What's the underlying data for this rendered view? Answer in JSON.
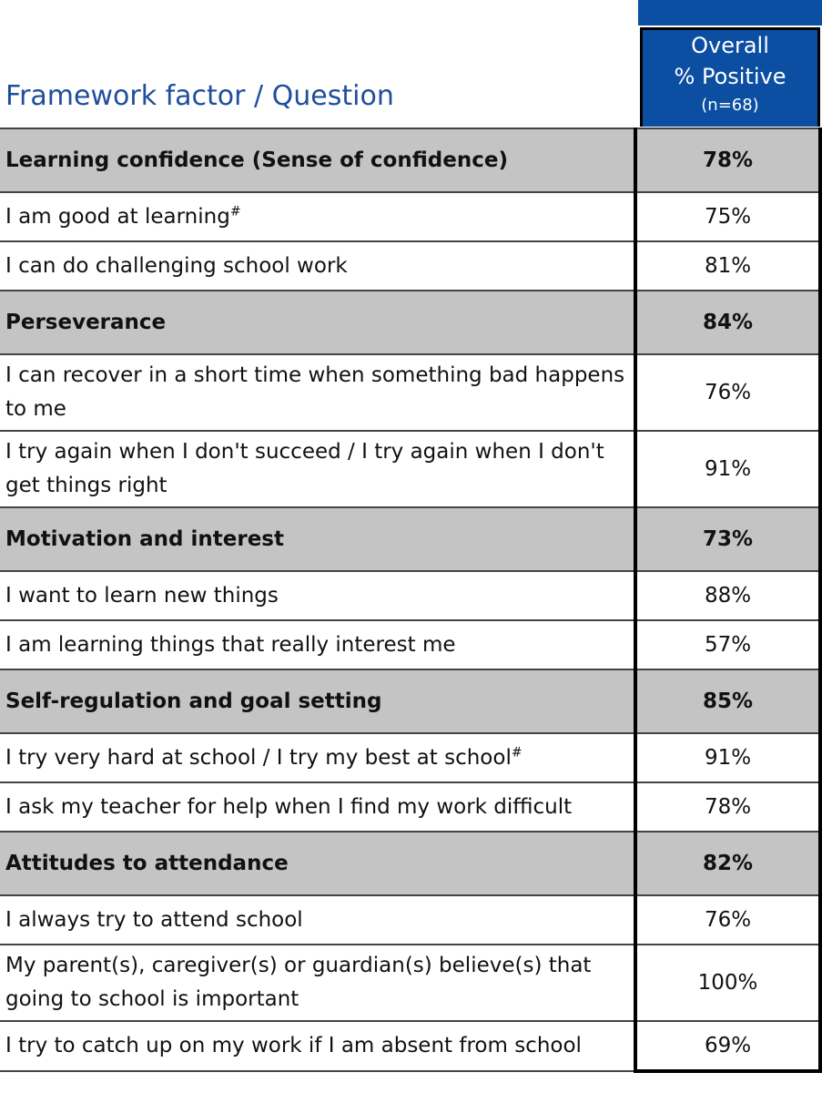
{
  "header": {
    "question_heading": "Framework factor / Question",
    "column_title": "Overall",
    "column_subtitle": "% Positive",
    "column_n": "(n=68)"
  },
  "sections": [
    {
      "factor": "Learning confidence (Sense of confidence)",
      "value": "78%",
      "questions": [
        {
          "text": "I am good at learning",
          "marker": "#",
          "value": "75%"
        },
        {
          "text": "I can do challenging school work",
          "value": "81%"
        }
      ]
    },
    {
      "factor": "Perseverance",
      "value": "84%",
      "questions": [
        {
          "text": "I can recover in a short time when something bad happens to me",
          "value": "76%"
        },
        {
          "text": "I try again when I don't succeed / I try again when I don't get things right",
          "value": "91%"
        }
      ]
    },
    {
      "factor": "Motivation and interest",
      "value": "73%",
      "questions": [
        {
          "text": "I want to learn new things",
          "value": "88%"
        },
        {
          "text": "I am learning things that really interest me",
          "value": "57%"
        }
      ]
    },
    {
      "factor": "Self-regulation and goal setting",
      "value": "85%",
      "questions": [
        {
          "text": "I try very hard at school / I try my best at school",
          "marker": "#",
          "value": "91%"
        },
        {
          "text": "I ask my teacher for help when I find my work difficult",
          "value": "78%"
        }
      ]
    },
    {
      "factor": "Attitudes to attendance",
      "value": "82%",
      "questions": [
        {
          "text": "I always try to attend school",
          "value": "76%"
        },
        {
          "text": "My parent(s), caregiver(s) or guardian(s) believe(s) that going to school is important",
          "value": "100%"
        },
        {
          "text": "I try to catch up on my work if I am absent from school",
          "value": "69%"
        }
      ]
    }
  ]
}
